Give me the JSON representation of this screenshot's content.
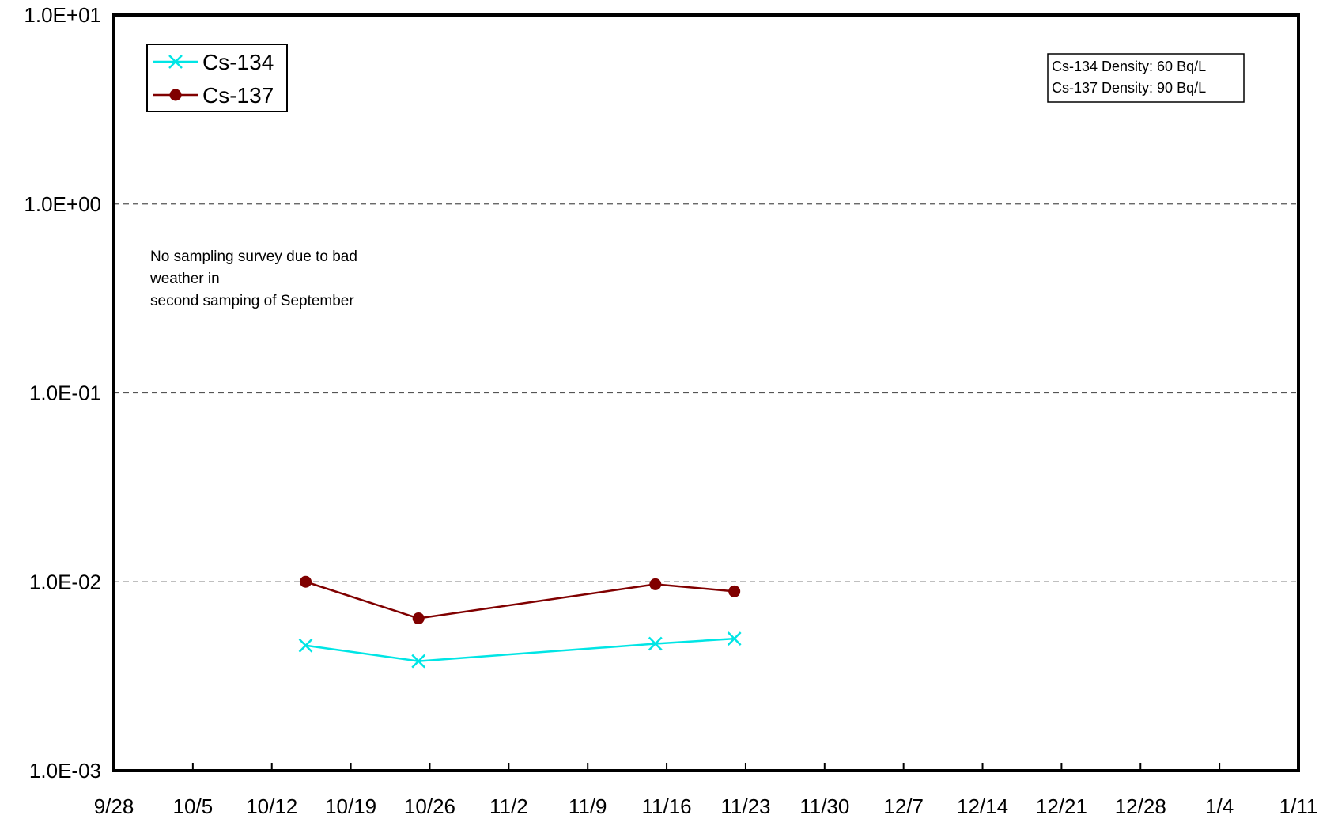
{
  "chart_data": {
    "type": "line",
    "title": "",
    "xlabel": "",
    "ylabel": "",
    "y_scale": "log",
    "ylim": [
      0.001,
      10
    ],
    "y_ticks": [
      {
        "value": 10,
        "label": "1.0E+01"
      },
      {
        "value": 1,
        "label": "1.0E+00"
      },
      {
        "value": 0.1,
        "label": "1.0E-01"
      },
      {
        "value": 0.01,
        "label": "1.0E-02"
      },
      {
        "value": 0.001,
        "label": "1.0E-03"
      }
    ],
    "xlim": [
      "9/28",
      "1/11"
    ],
    "x_tick_labels": [
      "9/28",
      "10/5",
      "10/12",
      "10/19",
      "10/26",
      "11/2",
      "11/9",
      "11/16",
      "11/23",
      "11/30",
      "12/7",
      "12/14",
      "12/21",
      "12/28",
      "1/4",
      "1/11"
    ],
    "grid": "horizontal dashed",
    "legend_position": "top-left",
    "series": [
      {
        "name": "Cs-134",
        "color": "#00e5e5",
        "marker": "x",
        "x": [
          "10/15",
          "10/25",
          "11/15",
          "11/22"
        ],
        "y": [
          0.0046,
          0.0038,
          0.0047,
          0.005
        ]
      },
      {
        "name": "Cs-137",
        "color": "#800000",
        "marker": "circle",
        "x": [
          "10/15",
          "10/25",
          "11/15",
          "11/22"
        ],
        "y": [
          0.01,
          0.0064,
          0.0097,
          0.0089
        ]
      }
    ],
    "annotations": {
      "density_lines": [
        "Cs-134 Density: 60 Bq/L",
        "Cs-137 Density: 90 Bq/L"
      ],
      "note_lines": [
        "No sampling survey due to bad",
        "weather in",
        "second samping of September"
      ]
    }
  }
}
